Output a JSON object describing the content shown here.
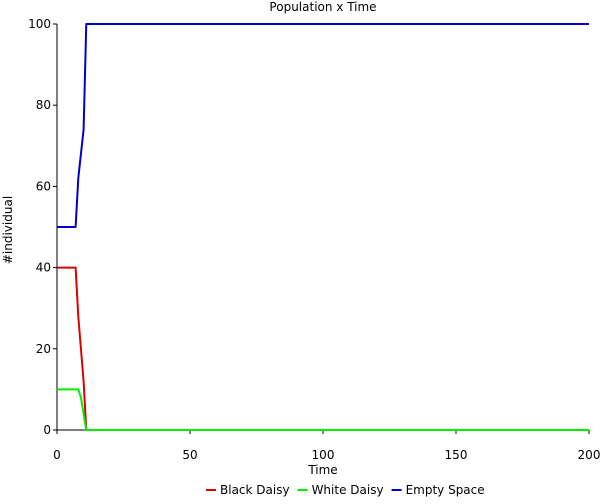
{
  "chart_data": {
    "type": "line",
    "title": "Population x Time",
    "xlabel": "Time",
    "ylabel": "#individual",
    "xlim": [
      0,
      200
    ],
    "ylim": [
      0,
      100
    ],
    "xticks": [
      0,
      50,
      100,
      150,
      200
    ],
    "yticks": [
      0,
      20,
      40,
      60,
      80,
      100
    ],
    "grid": false,
    "legend_position": "bottom-center",
    "series": [
      {
        "name": "Black Daisy",
        "color": "#dd0000",
        "x": [
          0,
          7,
          8,
          9,
          10,
          11,
          200
        ],
        "y": [
          40,
          40,
          28,
          20,
          12,
          0,
          0
        ]
      },
      {
        "name": "White Daisy",
        "color": "#00ee00",
        "x": [
          0,
          8,
          9,
          10,
          11,
          200
        ],
        "y": [
          10,
          10,
          8,
          4,
          0,
          0
        ]
      },
      {
        "name": "Empty Space",
        "color": "#0000cc",
        "x": [
          0,
          7,
          8,
          9,
          10,
          11,
          200
        ],
        "y": [
          50,
          50,
          62,
          68,
          74,
          100,
          100
        ]
      }
    ]
  }
}
